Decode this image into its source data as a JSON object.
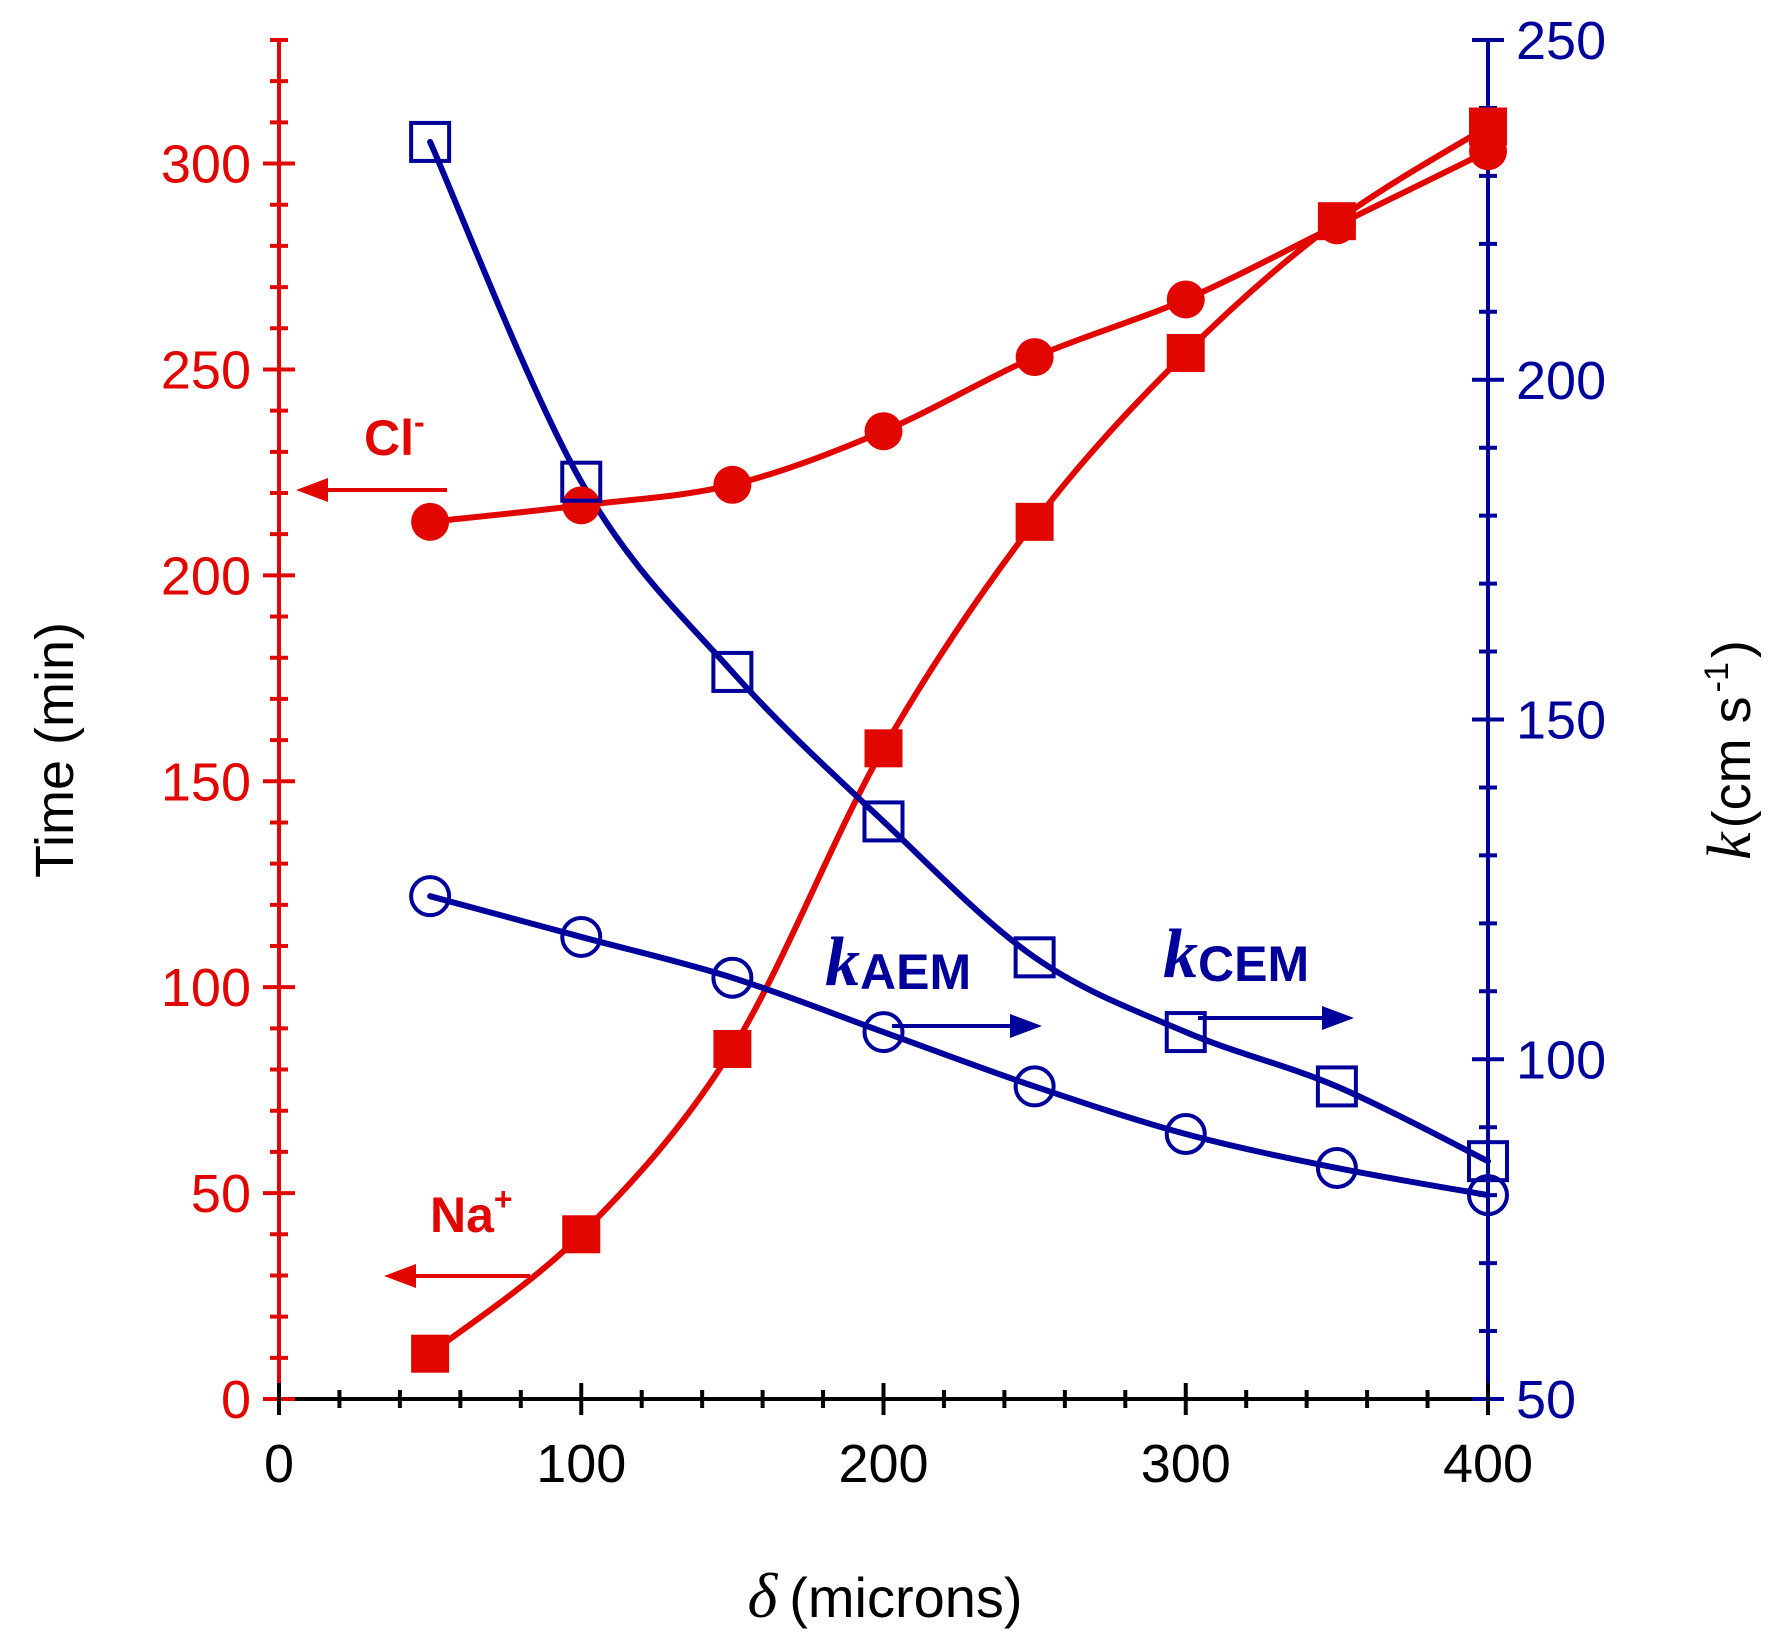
{
  "colors": {
    "left": "#e10600",
    "right": "#00009a",
    "bottom": "#000000"
  },
  "chart_data": {
    "type": "scatter",
    "x": [
      50,
      100,
      150,
      200,
      250,
      300,
      350,
      400
    ],
    "xlabel_symbol": "δ",
    "xlabel_rest": "(microns)",
    "xlim": [
      0,
      400
    ],
    "x_major": [
      0,
      100,
      200,
      300,
      400
    ],
    "ylabel_left": "Time  (min)",
    "ylim_left": [
      0,
      330
    ],
    "y_left_major": [
      0,
      50,
      100,
      150,
      200,
      250,
      300
    ],
    "ylabel_right_symbol": "k",
    "ylabel_right_rest": " (cm s",
    "ylabel_right_sup": "-1",
    "ylabel_right_close": ")",
    "ylim_right": [
      50,
      250
    ],
    "y_right_major": [
      50,
      100,
      150,
      200,
      250
    ],
    "series": [
      {
        "name": "Cl-",
        "axis": "left",
        "marker": "filled-circle",
        "values": [
          213,
          217,
          222,
          235,
          253,
          267,
          285,
          303
        ]
      },
      {
        "name": "Na+",
        "axis": "left",
        "marker": "filled-square",
        "values": [
          11,
          40,
          85,
          158,
          213,
          254,
          286,
          309
        ]
      },
      {
        "name": "kAEM",
        "axis": "right",
        "marker": "open-circle",
        "values": [
          124,
          118,
          112,
          104,
          96,
          89,
          84,
          80
        ]
      },
      {
        "name": "kCEM",
        "axis": "right",
        "marker": "open-square",
        "values": [
          235,
          185,
          157,
          135,
          115,
          104,
          96,
          85
        ]
      }
    ],
    "annotations": {
      "cl": {
        "base": "Cl",
        "sup": "-"
      },
      "na": {
        "base": "Na",
        "sup": "+"
      },
      "kaem": {
        "base": "k",
        "sub": "AEM"
      },
      "kcem": {
        "base": "k",
        "sub": "CEM"
      }
    }
  }
}
